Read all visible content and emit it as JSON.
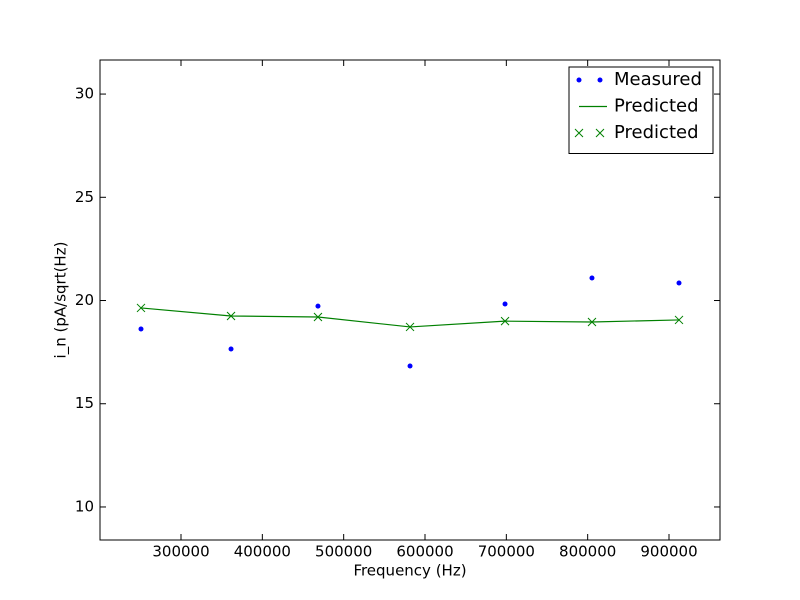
{
  "chart_data": {
    "type": "line",
    "xlabel": "Frequency (Hz)",
    "ylabel": "i_n (pA/sqrt(Hz)",
    "x": [
      250800,
      361500,
      468400,
      581600,
      698400,
      805300,
      912300
    ],
    "series": [
      {
        "name": "Measured",
        "color": "#0000ff",
        "style": "dot",
        "values": [
          18.62,
          17.65,
          19.73,
          16.83,
          19.83,
          21.09,
          20.85
        ]
      },
      {
        "name": "Predicted",
        "color": "#008000",
        "style": "line",
        "values": [
          19.64,
          19.25,
          19.2,
          18.72,
          19.0,
          18.96,
          19.06
        ]
      },
      {
        "name": "Predicted",
        "color": "#008000",
        "style": "x",
        "values": [
          19.64,
          19.25,
          19.2,
          18.72,
          19.0,
          18.96,
          19.06
        ]
      }
    ],
    "xlim": [
      200400,
      962700
    ],
    "ylim": [
      8.4,
      31.65
    ],
    "xticks": [
      300000,
      400000,
      500000,
      600000,
      700000,
      800000,
      900000
    ],
    "yticks": [
      10,
      15,
      20,
      25,
      30
    ],
    "legend": "upper right"
  }
}
